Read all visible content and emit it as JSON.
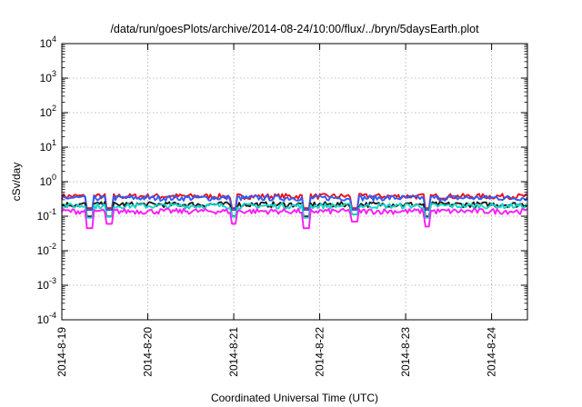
{
  "chart_data": {
    "type": "line",
    "title": "/data/run/goesPlots/archive/2014-08-24/10:00/flux/../bryn/5daysEarth.plot",
    "xlabel": "Coordinated Universal Time (UTC)",
    "ylabel": "cSv/day",
    "yscale": "log",
    "ylim": [
      0.0001,
      10000
    ],
    "xlim": [
      "2014-08-19 00:00",
      "2014-08-24 10:00"
    ],
    "grid": true,
    "x_ticks": [
      "2014-8-19",
      "2014-8-20",
      "2014-8-21",
      "2014-8-22",
      "2014-8-23",
      "2014-8-24"
    ],
    "y_ticks": [
      {
        "base": "10",
        "exp": "-4"
      },
      {
        "base": "10",
        "exp": "-3"
      },
      {
        "base": "10",
        "exp": "-2"
      },
      {
        "base": "10",
        "exp": "-1"
      },
      {
        "base": "10",
        "exp": "0"
      },
      {
        "base": "10",
        "exp": "1"
      },
      {
        "base": "10",
        "exp": "2"
      },
      {
        "base": "10",
        "exp": "3"
      },
      {
        "base": "10",
        "exp": "4"
      }
    ],
    "series": [
      {
        "color": "#e5141b",
        "level": 0.38
      },
      {
        "color": "#2f5cff",
        "level": 0.34
      },
      {
        "color": "#1b1b1b",
        "level": 0.22
      },
      {
        "color": "#19d6c6",
        "level": 0.2
      },
      {
        "color": "#ff1aff",
        "level": 0.14
      }
    ],
    "dips": [
      {
        "day": 0.33,
        "value": 0.045
      },
      {
        "day": 0.55,
        "value": 0.06
      },
      {
        "day": 2.0,
        "value": 0.06
      },
      {
        "day": 2.85,
        "value": 0.045
      },
      {
        "day": 3.4,
        "value": 0.07
      },
      {
        "day": 4.25,
        "value": 0.05
      }
    ]
  }
}
